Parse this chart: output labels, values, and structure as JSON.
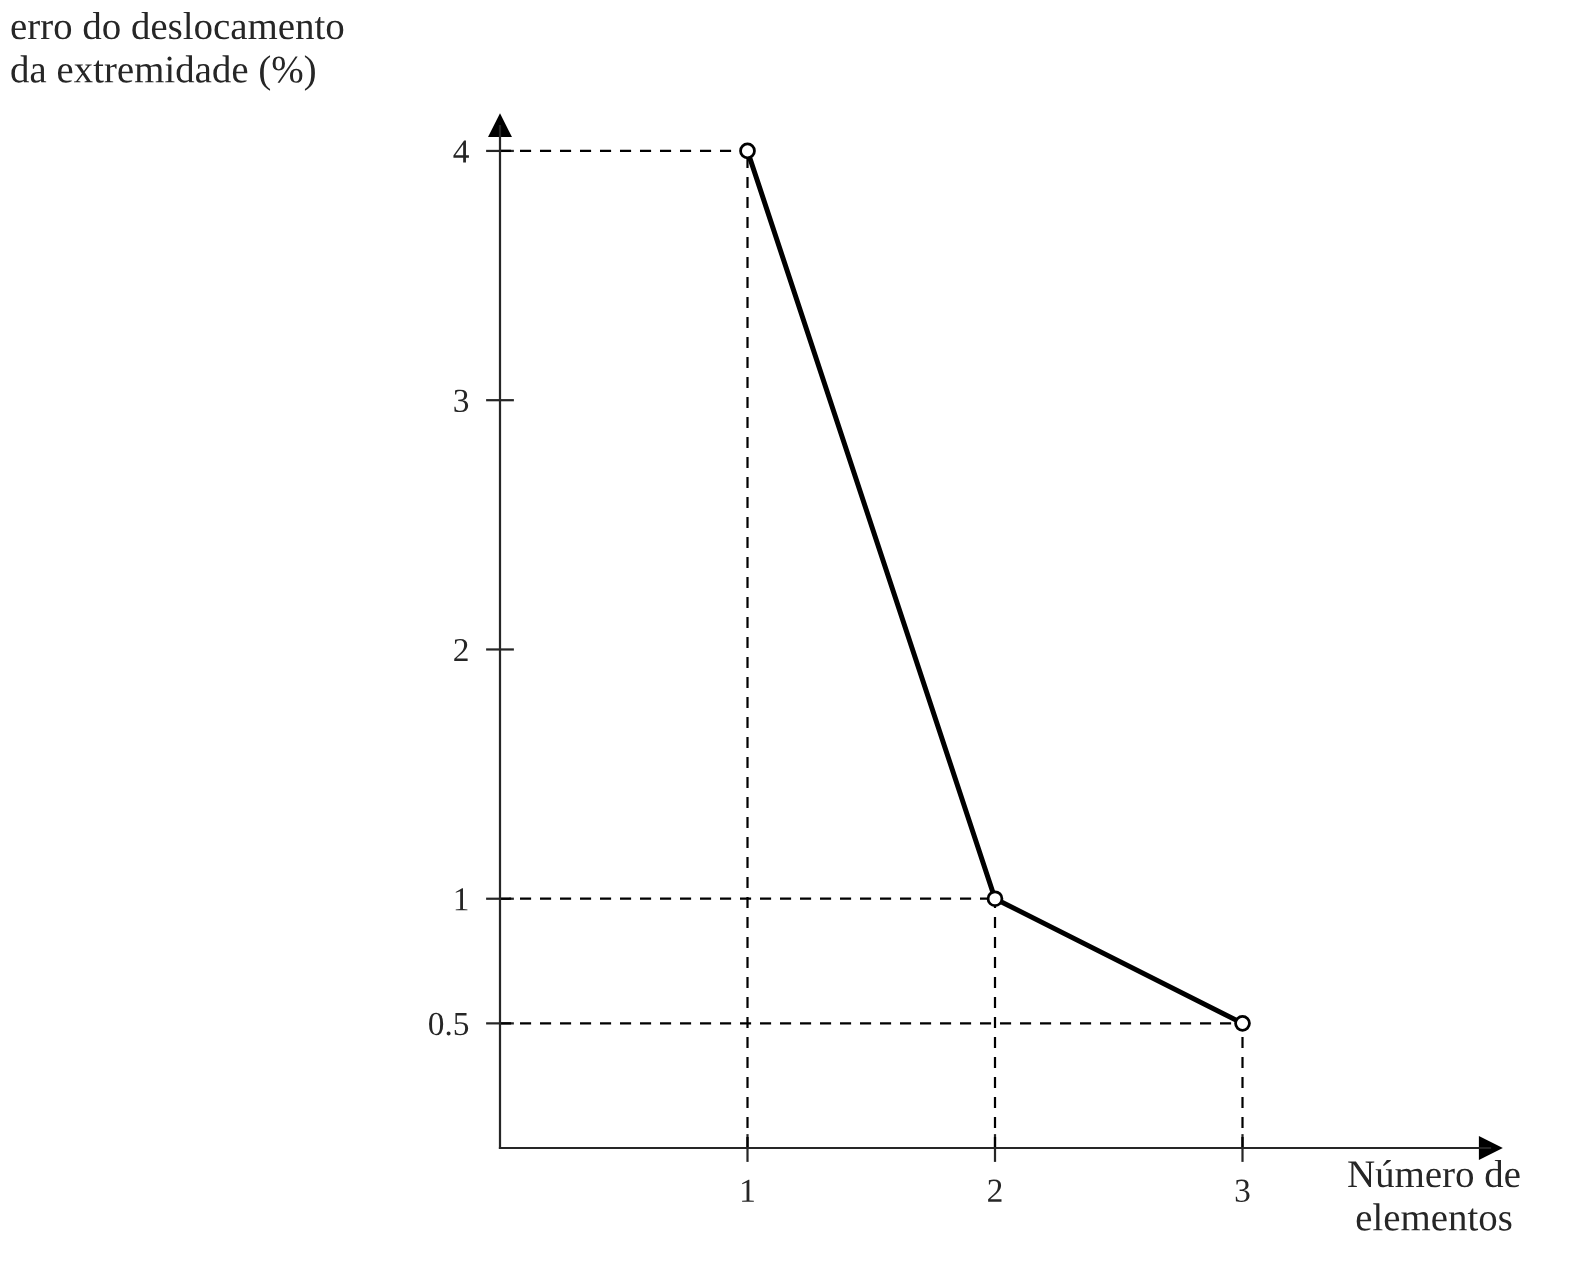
{
  "chart_data": {
    "type": "line",
    "xlabel": "Número de\nelementos",
    "ylabel": "erro do deslocamento\nda extremidade (%)",
    "x": [
      1,
      2,
      3
    ],
    "series": [
      {
        "color": "#000000",
        "values": [
          4,
          1,
          0.5
        ]
      }
    ],
    "xlim": [
      0,
      4.0
    ],
    "ylim": [
      0,
      4.1
    ],
    "xticks": [
      1,
      2,
      3
    ],
    "yticks": [
      0.5,
      1,
      2,
      3,
      4
    ],
    "marker": "circle",
    "line_style": "solid",
    "grid": false,
    "legend": false,
    "ref_lines": [
      {
        "axis": "x",
        "value": 1,
        "line_style": "dashed"
      },
      {
        "axis": "x",
        "value": 2,
        "line_style": "dashed"
      },
      {
        "axis": "x",
        "value": 3,
        "line_style": "dashed"
      },
      {
        "axis": "y",
        "value": 4,
        "line_style": "dashed"
      },
      {
        "axis": "y",
        "value": 1,
        "line_style": "dashed"
      },
      {
        "axis": "y",
        "value": 0.5,
        "line_style": "dashed"
      }
    ]
  }
}
